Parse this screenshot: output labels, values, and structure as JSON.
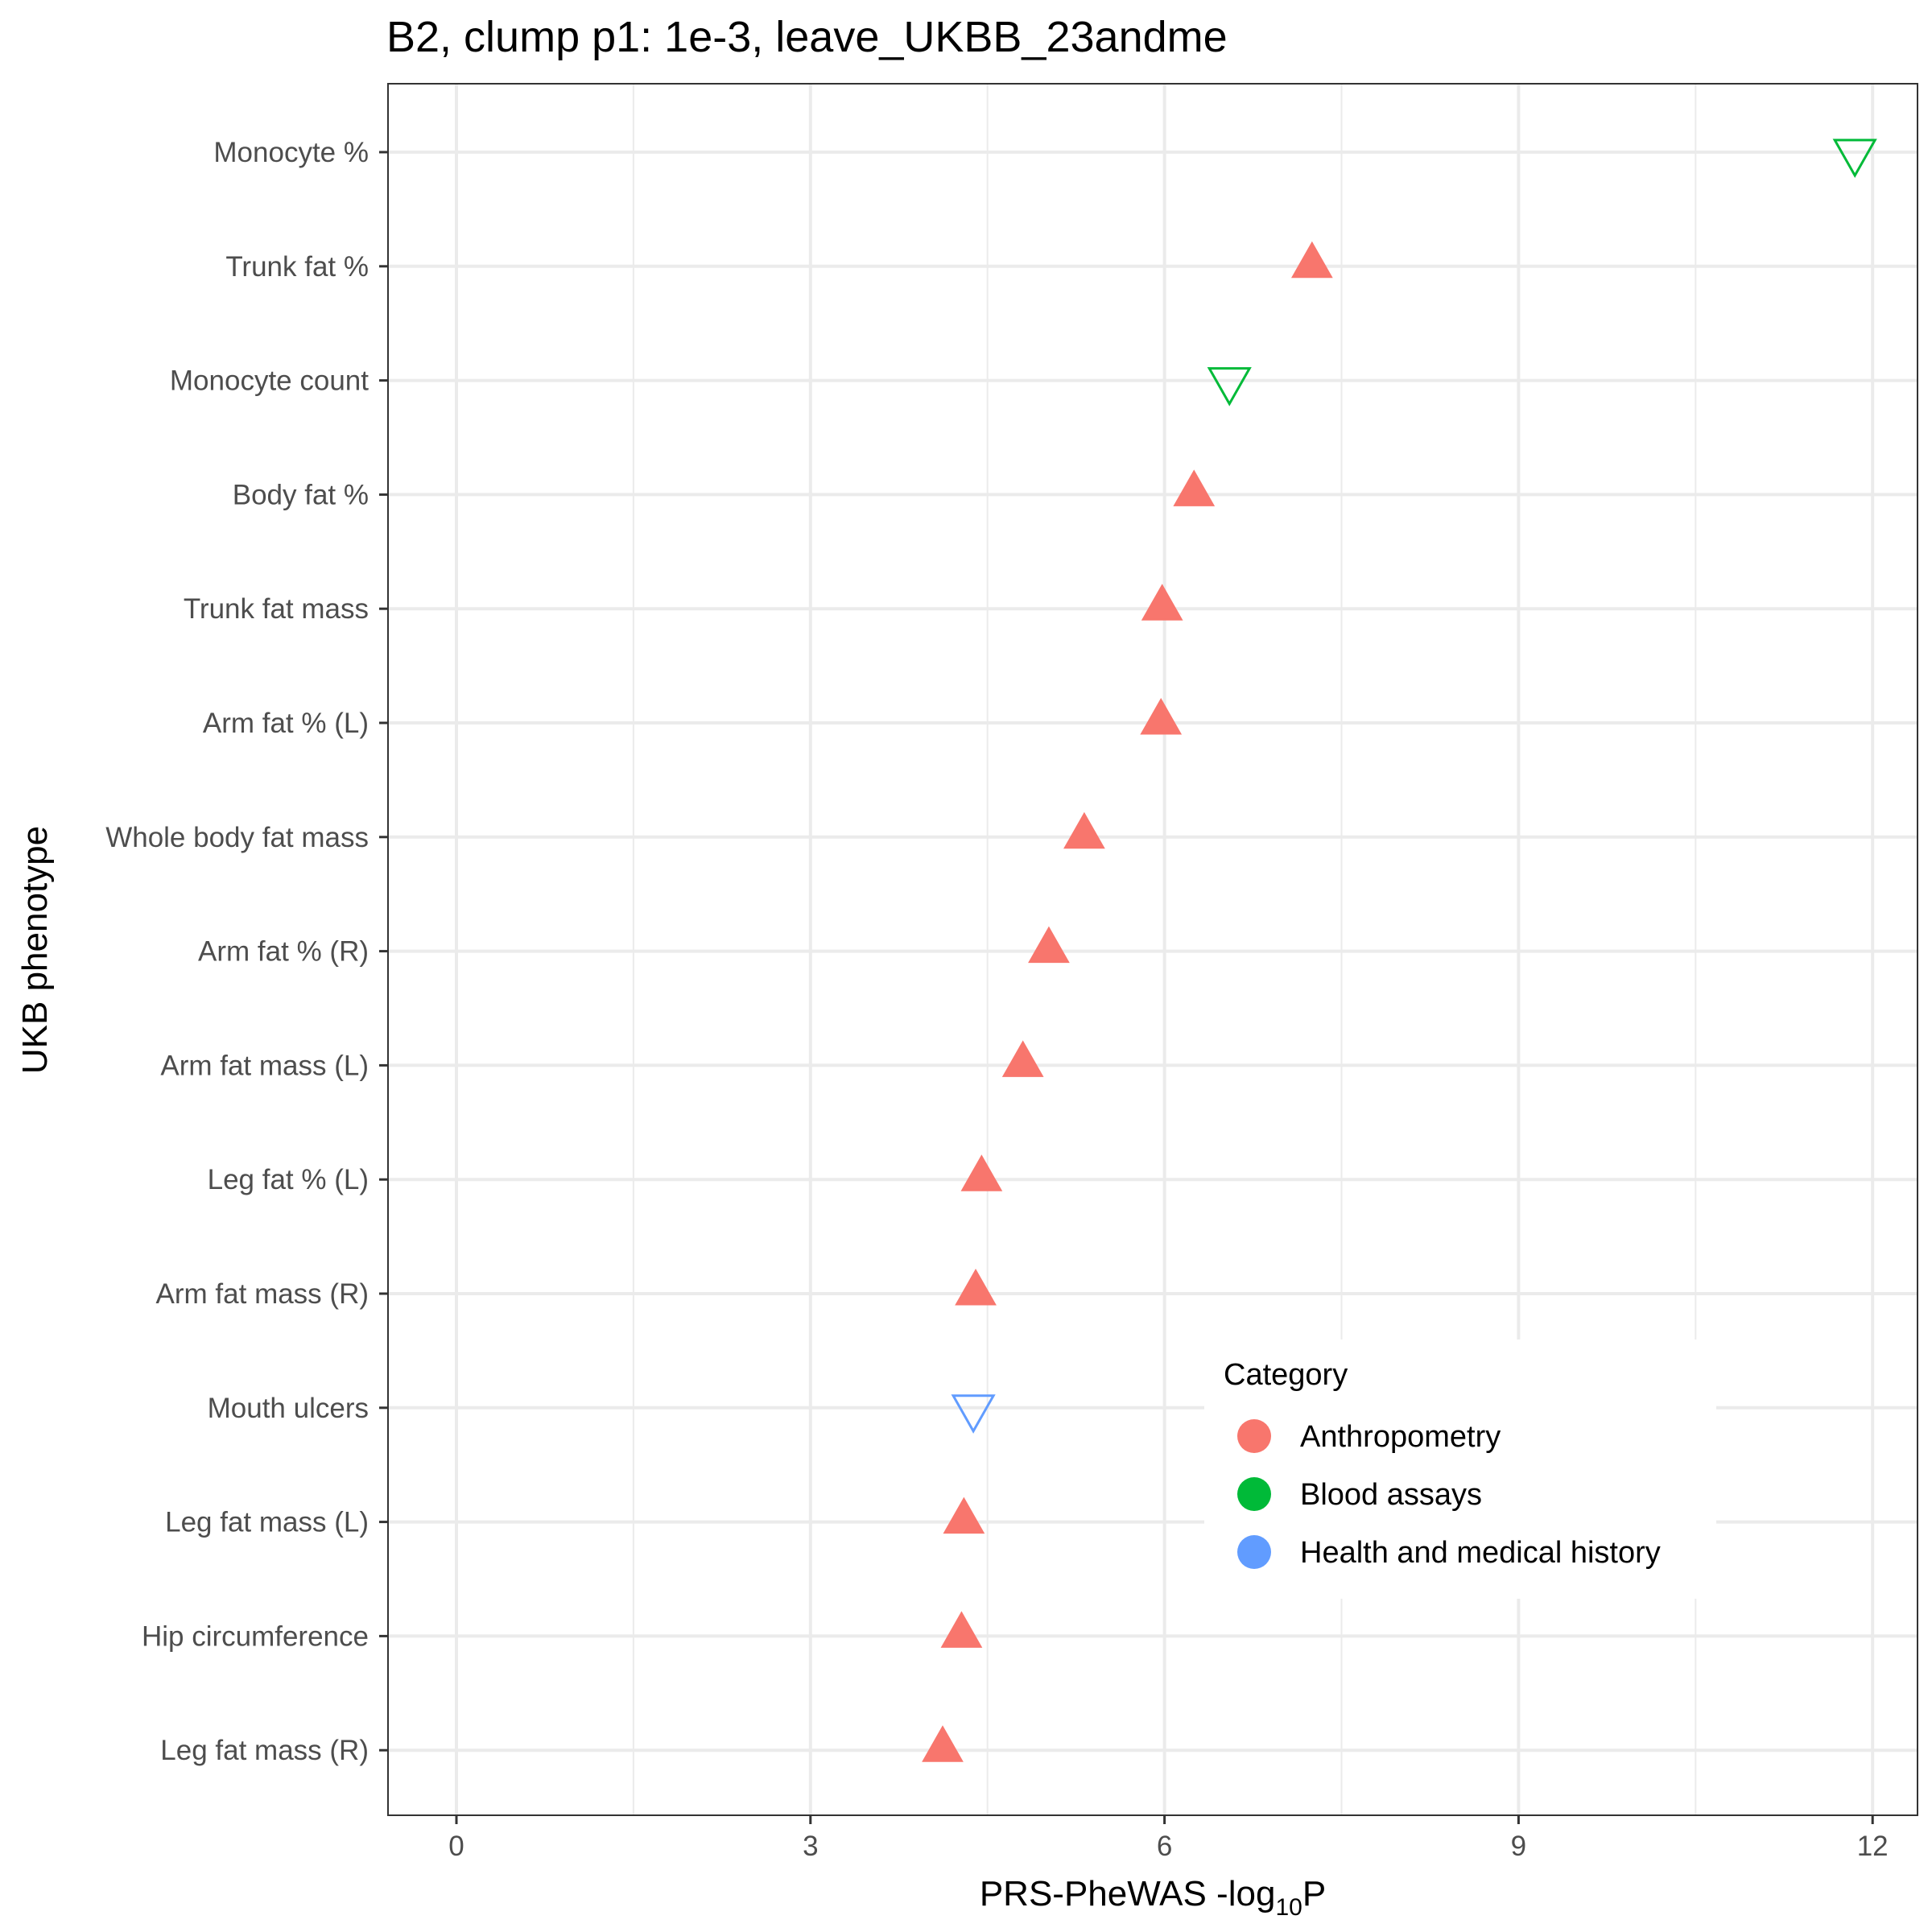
{
  "chart_data": {
    "type": "scatter",
    "title": "B2, clump p1: 1e-3, leave_UKBB_23andme",
    "xlabel": "PRS-PheWAS -log",
    "xlabel_subscript": "10",
    "xlabel_suffix": "P",
    "ylabel": "UKB phenotype",
    "xlim": [
      -0.6,
      12.3
    ],
    "xticks": [
      "0",
      "3",
      "6",
      "9",
      "12"
    ],
    "grid": true,
    "legend": {
      "title": "Category",
      "placement": "bottom-right inside",
      "entries": [
        {
          "label": "Anthropometry",
          "color": "#F8766D"
        },
        {
          "label": "Blood assays",
          "color": "#00BA38"
        },
        {
          "label": "Health and medical history",
          "color": "#619CFF"
        }
      ]
    },
    "points": [
      {
        "phenotype": "Monocyte %",
        "x": 11.85,
        "category": "Blood assays",
        "direction": "down"
      },
      {
        "phenotype": "Trunk fat %",
        "x": 7.25,
        "category": "Anthropometry",
        "direction": "up"
      },
      {
        "phenotype": "Monocyte count",
        "x": 6.55,
        "category": "Blood assays",
        "direction": "down"
      },
      {
        "phenotype": "Body fat %",
        "x": 6.25,
        "category": "Anthropometry",
        "direction": "up"
      },
      {
        "phenotype": "Trunk fat mass",
        "x": 5.98,
        "category": "Anthropometry",
        "direction": "up"
      },
      {
        "phenotype": "Arm fat % (L)",
        "x": 5.97,
        "category": "Anthropometry",
        "direction": "up"
      },
      {
        "phenotype": "Whole body fat mass",
        "x": 5.32,
        "category": "Anthropometry",
        "direction": "up"
      },
      {
        "phenotype": "Arm fat % (R)",
        "x": 5.02,
        "category": "Anthropometry",
        "direction": "up"
      },
      {
        "phenotype": "Arm fat mass (L)",
        "x": 4.8,
        "category": "Anthropometry",
        "direction": "up"
      },
      {
        "phenotype": "Leg fat % (L)",
        "x": 4.45,
        "category": "Anthropometry",
        "direction": "up"
      },
      {
        "phenotype": "Arm fat mass (R)",
        "x": 4.4,
        "category": "Anthropometry",
        "direction": "up"
      },
      {
        "phenotype": "Mouth ulcers",
        "x": 4.38,
        "category": "Health and medical history",
        "direction": "down"
      },
      {
        "phenotype": "Leg fat mass (L)",
        "x": 4.3,
        "category": "Anthropometry",
        "direction": "up"
      },
      {
        "phenotype": "Hip circumference",
        "x": 4.28,
        "category": "Anthropometry",
        "direction": "up"
      },
      {
        "phenotype": "Leg fat mass (R)",
        "x": 4.12,
        "category": "Anthropometry",
        "direction": "up"
      }
    ]
  }
}
